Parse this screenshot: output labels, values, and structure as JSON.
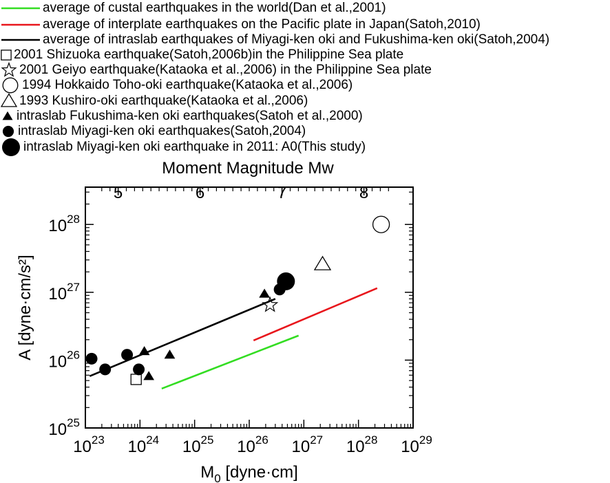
{
  "legend": [
    {
      "text": "average of custal earthquakes in the world(Dan et al.,2001)",
      "symbol": "line",
      "color": "#33dd22",
      "icon": "green-line"
    },
    {
      "text": "average of interplate earthquakes on the Pacific plate in Japan(Satoh,2010)",
      "symbol": "line",
      "color": "#e8161c",
      "icon": "red-line"
    },
    {
      "text": "average of intraslab earthquakes of Miyagi-ken oki and Fukushima-ken oki(Satoh,2004)",
      "symbol": "line",
      "color": "#000000",
      "icon": "black-line"
    },
    {
      "text": "2001 Shizuoka earthquake(Satoh,2006b)in the Philippine Sea plate",
      "symbol": "square-open",
      "icon": "open-square"
    },
    {
      "text": "2001 Geiyo earthquake(Kataoka et al.,2006) in the Philippine Sea plate",
      "symbol": "star-open",
      "icon": "open-star"
    },
    {
      "text": "1994 Hokkaido Toho-oki earthquake(Kataoka et al.,2006)",
      "symbol": "circle-open",
      "icon": "open-circle"
    },
    {
      "text": "1993 Kushiro-oki earthquake(Kataoka et al.,2006)",
      "symbol": "triangle-open",
      "icon": "open-triangle"
    },
    {
      "text": "intraslab Fukushima-ken oki earthquakes(Satoh et al.,2000)",
      "symbol": "triangle-filled",
      "icon": "filled-triangle"
    },
    {
      "text": "intraslab Miyagi-ken oki earthquakes(Satoh,2004)",
      "symbol": "circle-filled",
      "icon": "filled-circle"
    },
    {
      "text": "intraslab Miyagi-ken oki earthquake in 2011: A0(This study)",
      "symbol": "circle-filled-large",
      "icon": "large-filled-circle"
    }
  ],
  "chart_data": {
    "type": "scatter",
    "xscale": "log",
    "yscale": "log",
    "xlim": [
      1e+23,
      1e+29
    ],
    "ylim": [
      1e+25,
      1e+28
    ],
    "grid": false,
    "xlabel_main": "M",
    "xlabel_sub": "0",
    "xlabel_unit": " [dyne·cm]",
    "ylabel": "A [dyne·cm/s²]",
    "top_axis_label": "Moment Magnitude Mw",
    "x_tick_labels": [
      {
        "base": "10",
        "exp": "23"
      },
      {
        "base": "10",
        "exp": "24"
      },
      {
        "base": "10",
        "exp": "25"
      },
      {
        "base": "10",
        "exp": "26"
      },
      {
        "base": "10",
        "exp": "27"
      },
      {
        "base": "10",
        "exp": "28"
      },
      {
        "base": "10",
        "exp": "29"
      }
    ],
    "y_tick_labels": [
      {
        "base": "10",
        "exp": "25"
      },
      {
        "base": "10",
        "exp": "26"
      },
      {
        "base": "10",
        "exp": "27"
      },
      {
        "base": "10",
        "exp": "28"
      }
    ],
    "top_tick_labels": [
      "5",
      "6",
      "7",
      "8"
    ],
    "top_axis_mw_ticks": [
      5,
      6,
      7,
      8
    ],
    "lines": [
      {
        "name": "average of custal earthquakes in the world(Dan et al.,2001)",
        "color": "#33dd22",
        "x": [
          2.5e+24,
          8e+26
        ],
        "y": [
          3.8e+25,
          2.3e+26
        ]
      },
      {
        "name": "average of interplate earthquakes on the Pacific plate in Japan(Satoh,2010)",
        "color": "#e8161c",
        "x": [
          1.2e+26,
          2.2e+28
        ],
        "y": [
          1.95e+26,
          1.15e+27
        ]
      },
      {
        "name": "average of intraslab earthquakes of Miyagi-ken oki and Fukushima-ken oki(Satoh,2004)",
        "color": "#000000",
        "x": [
          1.2e+23,
          3e+26
        ],
        "y": [
          5.8e+25,
          8e+26
        ]
      }
    ],
    "points": [
      {
        "series": "2001 Shizuoka earthquake(Satoh,2006b)in the Philippine Sea plate",
        "symbol": "square-open",
        "x": 8.5e+23,
        "y": 5.2e+25
      },
      {
        "series": "2001 Geiyo earthquake(Kataoka et al.,2006) in the Philippine Sea plate",
        "symbol": "star-open",
        "x": 2.4e+26,
        "y": 6.5e+26
      },
      {
        "series": "1994 Hokkaido Toho-oki earthquake(Kataoka et al.,2006)",
        "symbol": "circle-open",
        "x": 2.6e+28,
        "y": 1e+28
      },
      {
        "series": "1993 Kushiro-oki earthquake(Kataoka et al.,2006)",
        "symbol": "triangle-open",
        "x": 2.2e+27,
        "y": 2.6e+27
      },
      {
        "series": "intraslab Fukushima-ken oki earthquakes(Satoh et al.,2000)",
        "symbol": "triangle-filled",
        "x": 1.2e+24,
        "y": 1.35e+26
      },
      {
        "series": "intraslab Fukushima-ken oki earthquakes(Satoh et al.,2000)",
        "symbol": "triangle-filled",
        "x": 1.45e+24,
        "y": 5.8e+25
      },
      {
        "series": "intraslab Fukushima-ken oki earthquakes(Satoh et al.,2000)",
        "symbol": "triangle-filled",
        "x": 3.5e+24,
        "y": 1.2e+26
      },
      {
        "series": "intraslab Fukushima-ken oki earthquakes(Satoh et al.,2000)",
        "symbol": "triangle-filled",
        "x": 1.9e+26,
        "y": 9.5e+26
      },
      {
        "series": "intraslab Miyagi-ken oki earthquakes(Satoh,2004)",
        "symbol": "circle-filled",
        "x": 1.3e+23,
        "y": 1.05e+26
      },
      {
        "series": "intraslab Miyagi-ken oki earthquakes(Satoh,2004)",
        "symbol": "circle-filled",
        "x": 2.3e+23,
        "y": 7.3e+25
      },
      {
        "series": "intraslab Miyagi-ken oki earthquakes(Satoh,2004)",
        "symbol": "circle-filled",
        "x": 5.8e+23,
        "y": 1.2e+26
      },
      {
        "series": "intraslab Miyagi-ken oki earthquakes(Satoh,2004)",
        "symbol": "circle-filled",
        "x": 9.5e+23,
        "y": 7.3e+25
      },
      {
        "series": "intraslab Miyagi-ken oki earthquakes(Satoh,2004)",
        "symbol": "circle-filled",
        "x": 3.6e+26,
        "y": 1.1e+27
      },
      {
        "series": "intraslab Miyagi-ken oki earthquake in 2011: A0(This study)",
        "symbol": "circle-filled-large",
        "x": 4.7e+26,
        "y": 1.45e+27
      }
    ]
  }
}
